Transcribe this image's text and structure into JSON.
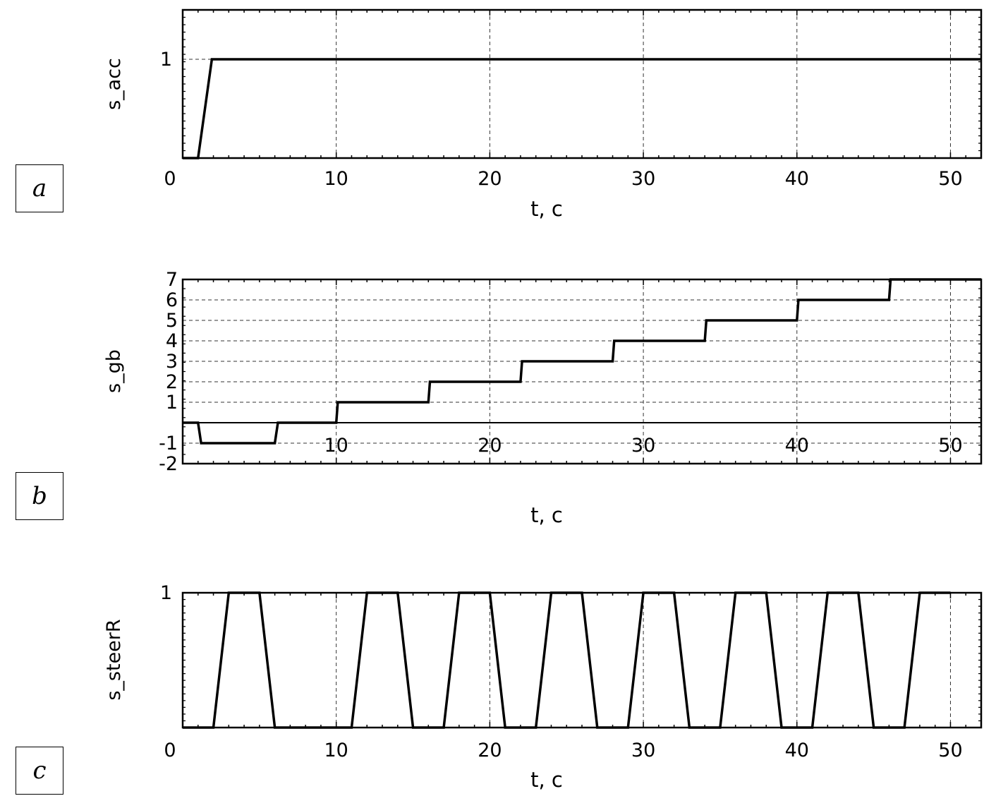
{
  "chart_data": [
    {
      "type": "line",
      "panel": "a",
      "ylabel": "s_acc",
      "xlabel": "t, c",
      "xlim": [
        0,
        52
      ],
      "ylim": [
        0,
        1.5
      ],
      "xticks": [
        0,
        10,
        20,
        30,
        40,
        50
      ],
      "yticks": [
        1
      ],
      "grid": true,
      "series": [
        {
          "x": [
            0,
            1.0,
            1.9,
            2.0,
            52
          ],
          "y": [
            0,
            0,
            1,
            1,
            1
          ]
        }
      ]
    },
    {
      "type": "line",
      "panel": "b",
      "ylabel": "s_gb",
      "xlabel": "t, c",
      "xlim": [
        0,
        52
      ],
      "ylim": [
        -2,
        7
      ],
      "xticks": [
        10,
        20,
        30,
        40,
        50
      ],
      "yticks": [
        7,
        6,
        5,
        4,
        3,
        2,
        1,
        -1,
        -2
      ],
      "grid": true,
      "series": [
        {
          "x": [
            0,
            1.0,
            1.2,
            6.0,
            6.2,
            10.0,
            10.1,
            16.0,
            16.1,
            22.0,
            22.1,
            28.0,
            28.1,
            34.0,
            34.1,
            40.0,
            40.1,
            46.0,
            46.1,
            52
          ],
          "y": [
            0,
            0,
            -1,
            -1,
            0,
            0,
            1,
            1,
            2,
            2,
            3,
            3,
            4,
            4,
            5,
            5,
            6,
            6,
            7,
            7
          ]
        }
      ]
    },
    {
      "type": "line",
      "panel": "c",
      "ylabel": "s_steerR",
      "xlabel": "t, c",
      "xlim": [
        0,
        52
      ],
      "ylim": [
        0,
        1
      ],
      "xticks": [
        0,
        10,
        20,
        30,
        40,
        50
      ],
      "yticks": [
        1
      ],
      "grid": true,
      "series": [
        {
          "x": [
            0,
            2.0,
            3.0,
            5.0,
            6.0,
            11.0,
            12.0,
            14.0,
            15.0,
            17.0,
            18.0,
            20.0,
            21.0,
            23.0,
            24.0,
            26.0,
            27.0,
            29.0,
            30.0,
            32.0,
            33.0,
            35.0,
            36.0,
            38.0,
            39.0,
            41.0,
            42.0,
            44.0,
            45.0,
            47.0,
            48.0,
            50.0
          ],
          "y": [
            0,
            0,
            1,
            1,
            0,
            0,
            1,
            1,
            0,
            0,
            1,
            1,
            0,
            0,
            1,
            1,
            0,
            0,
            1,
            1,
            0,
            0,
            1,
            1,
            0,
            0,
            1,
            1,
            0,
            0,
            1,
            1
          ]
        }
      ]
    }
  ],
  "panel_labels": [
    "a",
    "b",
    "c"
  ]
}
